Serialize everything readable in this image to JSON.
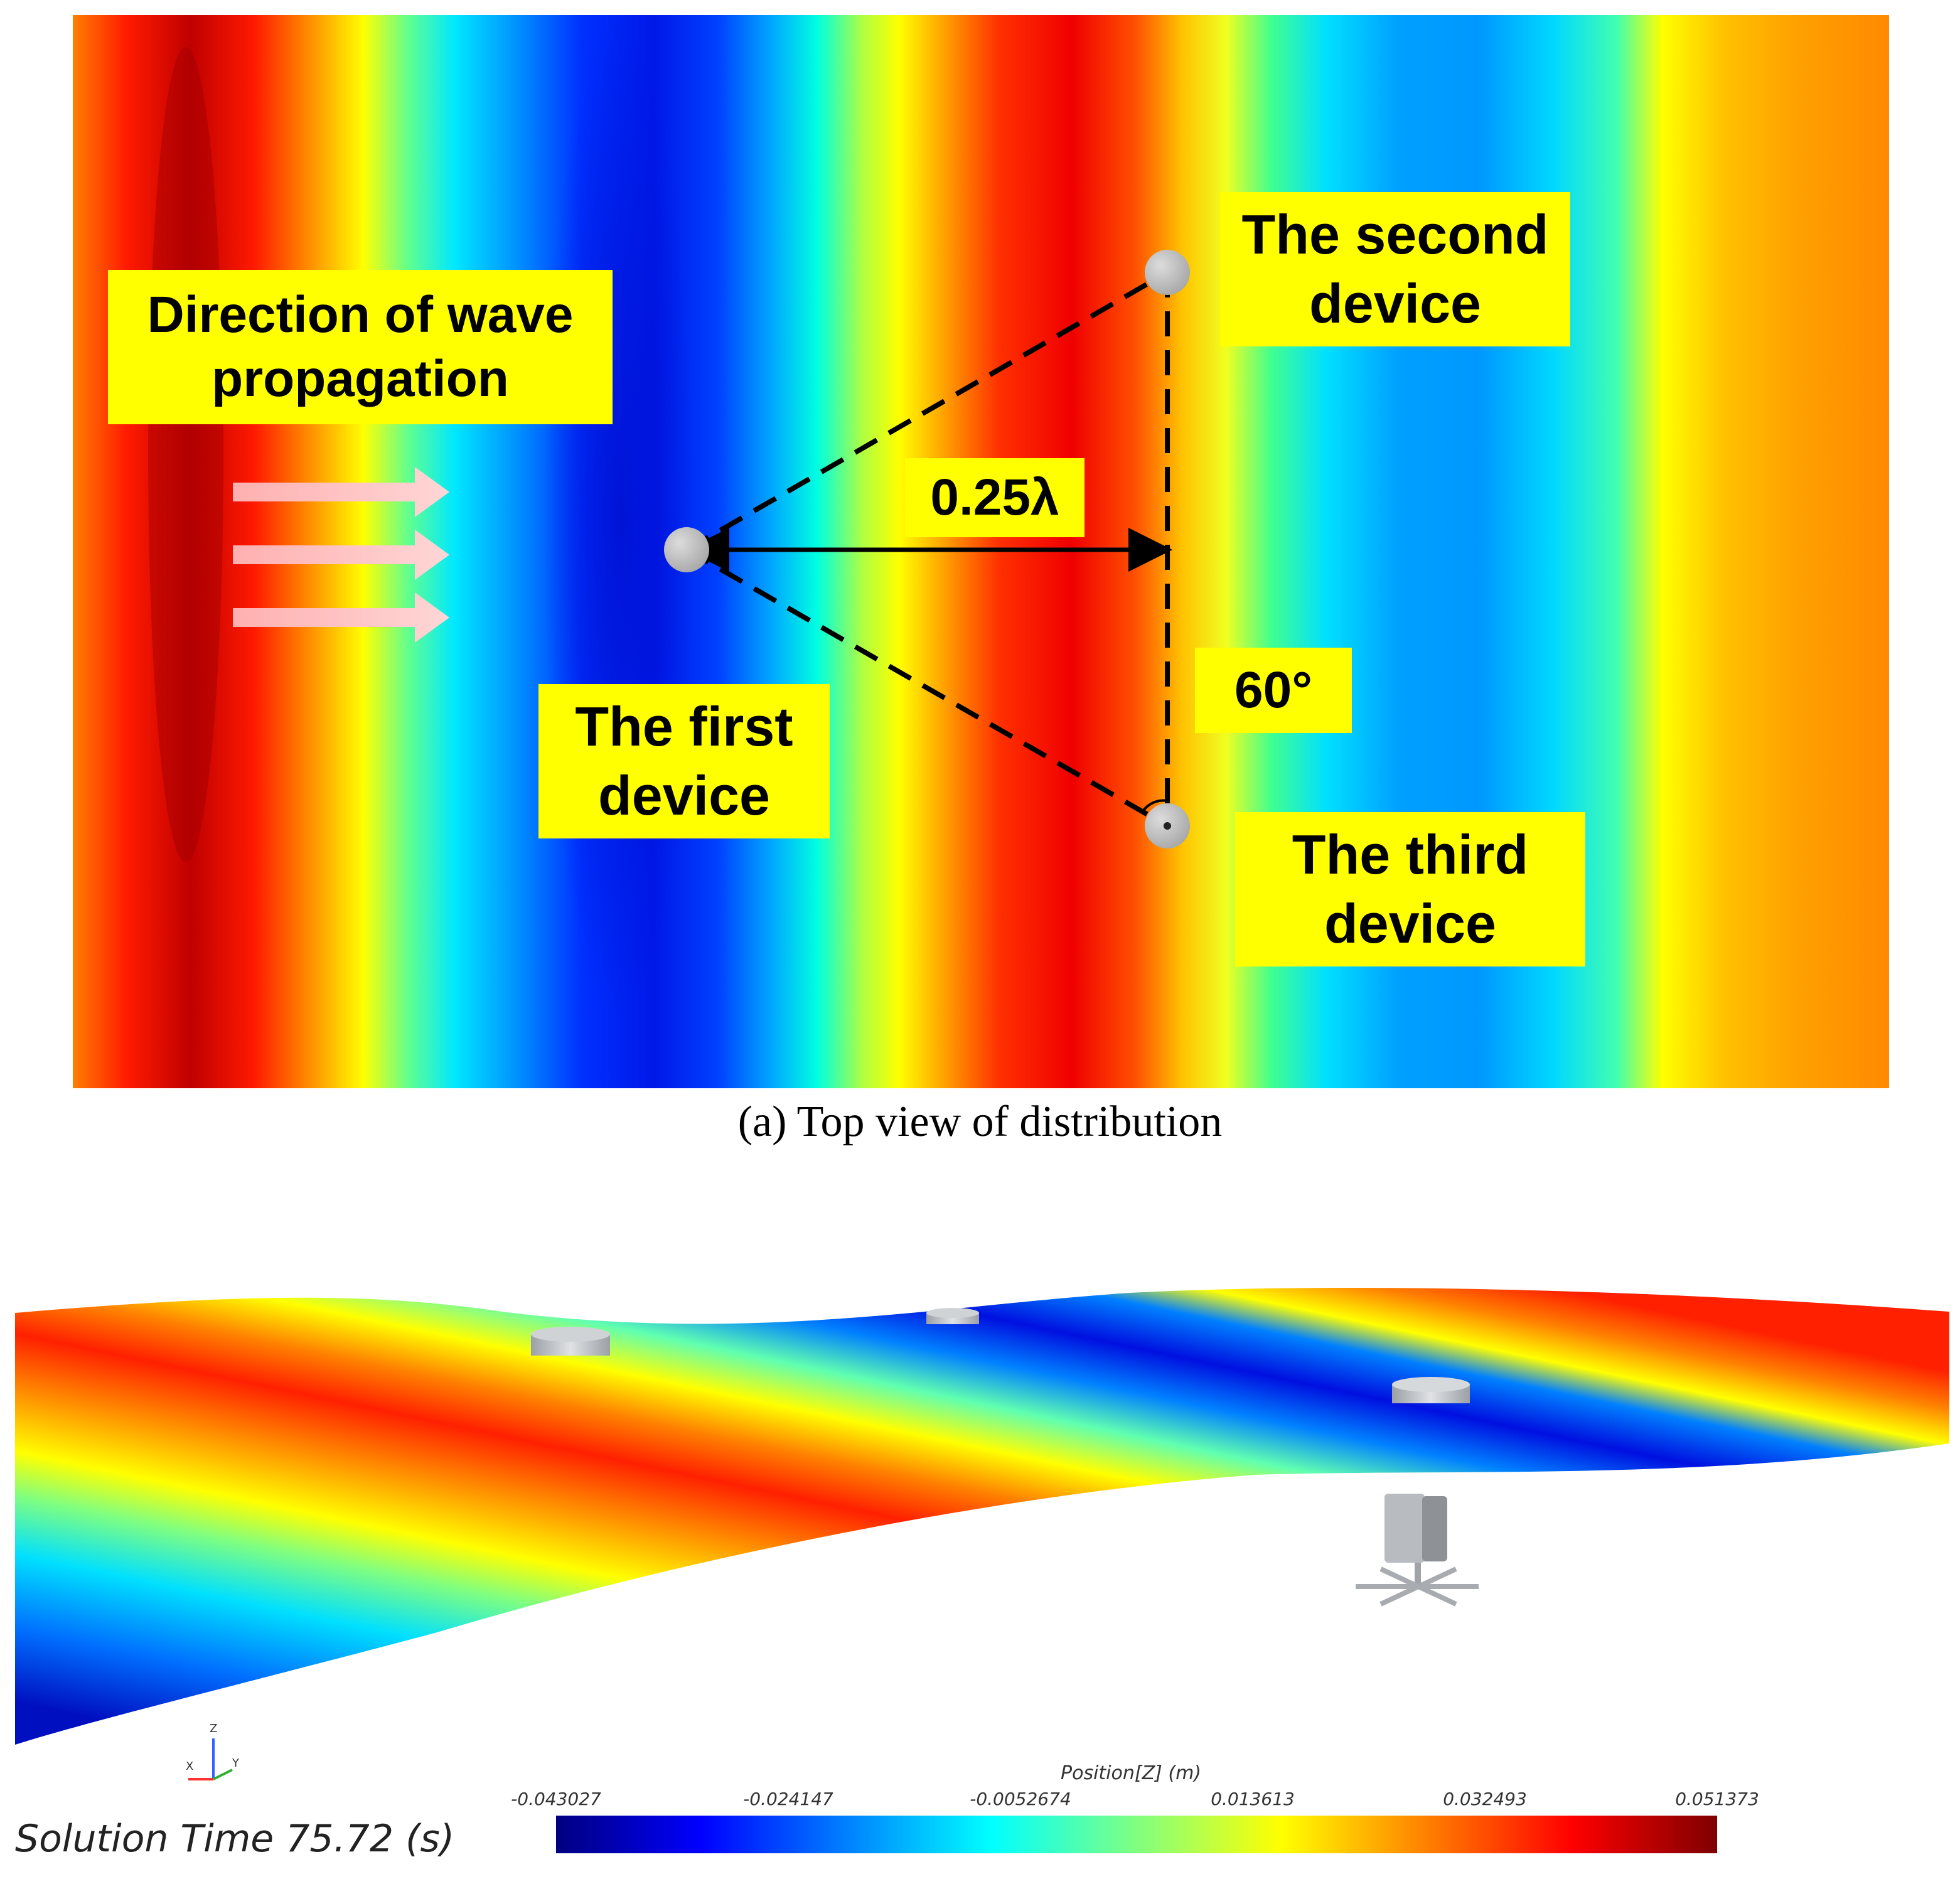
{
  "top_view": {
    "labels": {
      "direction": [
        "Direction of wave",
        "propagation"
      ],
      "second_device": [
        "The second",
        "device"
      ],
      "first_device": [
        "The first",
        "device"
      ],
      "third_device": [
        "The third",
        "device"
      ],
      "spacing": "0.25λ",
      "angle": "60°"
    },
    "caption": "(a) Top view of distribution"
  },
  "perspective_view": {
    "solution_time": "Solution Time 75.72 (s)",
    "axis_triad": {
      "x": "X",
      "y": "Y",
      "z": "Z"
    },
    "colorbar": {
      "title": "Position[Z] (m)",
      "ticks": [
        "-0.043027",
        "-0.024147",
        "-0.0052674",
        "0.013613",
        "0.032493",
        "0.051373"
      ],
      "colors": [
        "#00007f",
        "#0000ff",
        "#0080ff",
        "#00ffff",
        "#80ff80",
        "#ffff00",
        "#ff8000",
        "#ff0000",
        "#7f0000"
      ]
    }
  }
}
